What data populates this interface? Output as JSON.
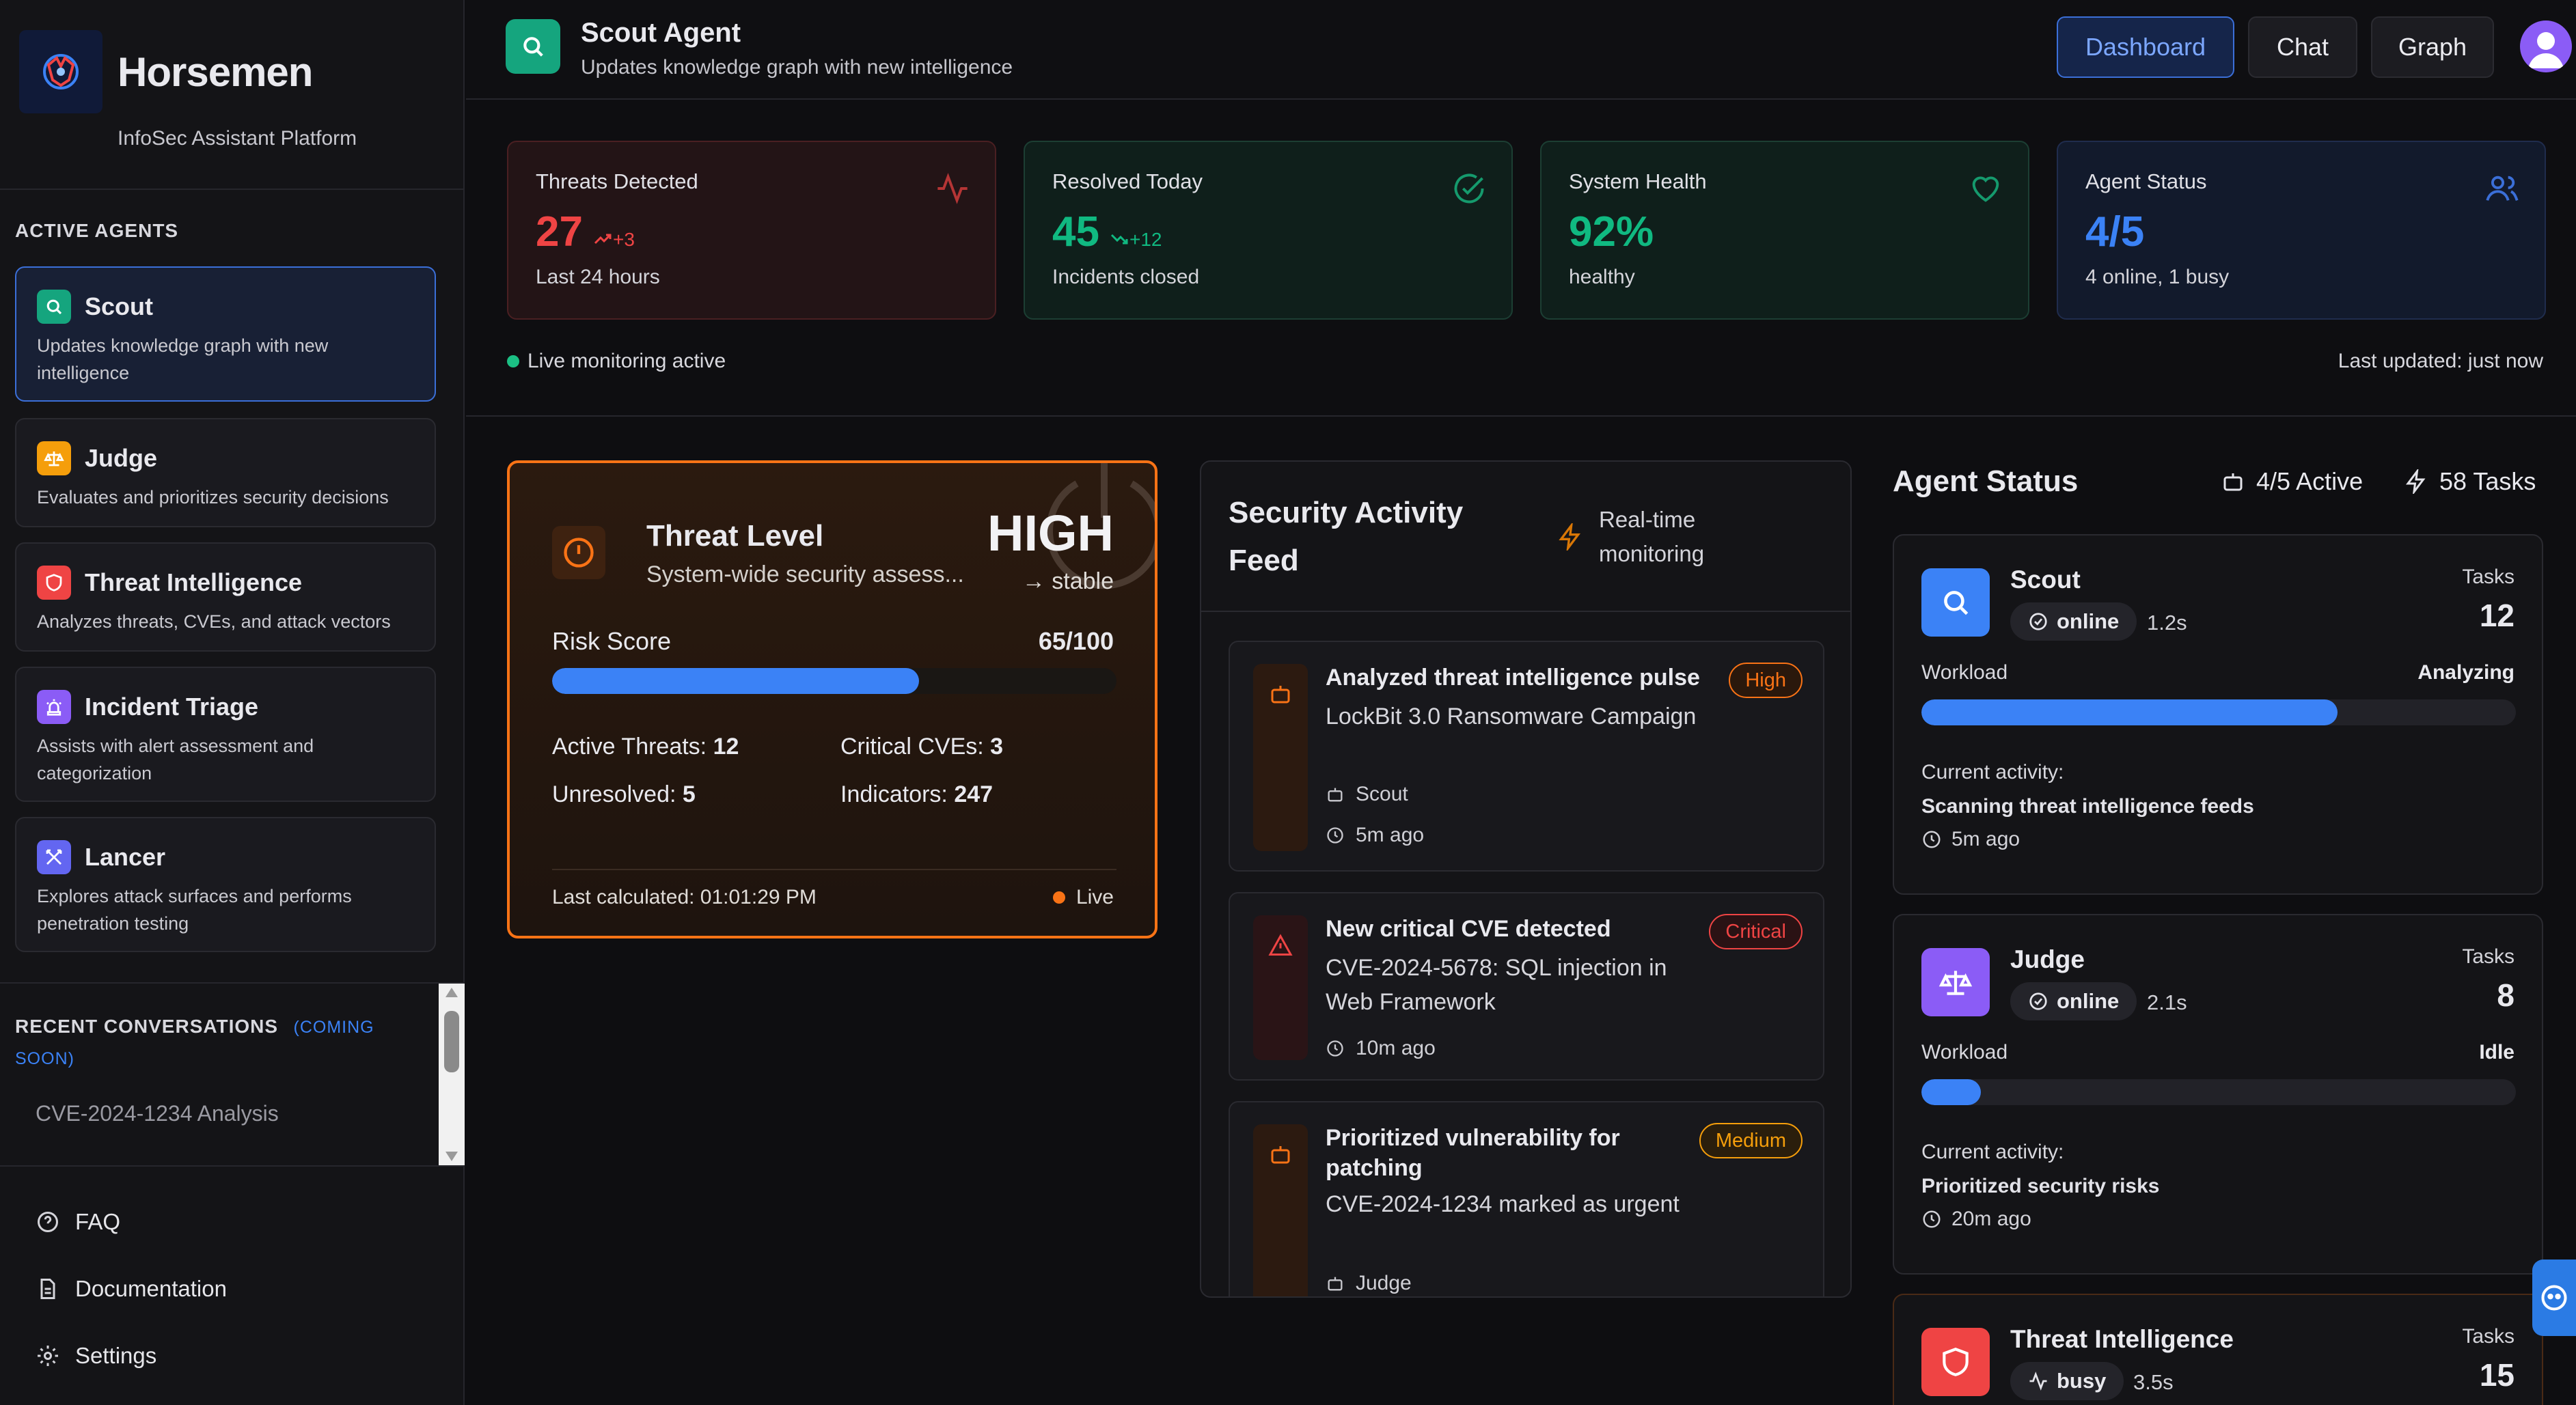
{
  "sidebar": {
    "brand": "Horsemen",
    "platform": "InfoSec Assistant Platform",
    "active_agents_label": "ACTIVE AGENTS",
    "agents": [
      {
        "name": "Scout",
        "desc": "Updates knowledge graph with new intelligence",
        "color": "#15a57e",
        "icon": "search-icon"
      },
      {
        "name": "Judge",
        "desc": "Evaluates and prioritizes security decisions",
        "color": "#f59e0b",
        "icon": "scale-icon"
      },
      {
        "name": "Threat Intelligence",
        "desc": "Analyzes threats, CVEs, and attack vectors",
        "color": "#ef4444",
        "icon": "shield-icon"
      },
      {
        "name": "Incident Triage",
        "desc": "Assists with alert assessment and categorization",
        "color": "#8b5cf6",
        "icon": "siren-icon"
      },
      {
        "name": "Lancer",
        "desc": "Explores attack surfaces and performs penetration testing",
        "color": "#6366f1",
        "icon": "swords-icon"
      }
    ],
    "recent_label": "RECENT CONVERSATIONS",
    "recent_tag": "(COMING SOON)",
    "recent_items": [
      "CVE-2024-1234 Analysis"
    ],
    "links": [
      {
        "label": "FAQ",
        "icon": "help-circle-icon"
      },
      {
        "label": "Documentation",
        "icon": "document-icon"
      },
      {
        "label": "Settings",
        "icon": "gear-icon"
      }
    ]
  },
  "header": {
    "title": "Scout Agent",
    "subtitle": "Updates knowledge graph with new intelligence",
    "nav": [
      "Dashboard",
      "Chat",
      "Graph"
    ],
    "active_nav": "Dashboard"
  },
  "stats": [
    {
      "label": "Threats Detected",
      "value": "27",
      "delta": "+3",
      "sub": "Last 24 hours",
      "color": "#ef4444",
      "icon": "activity-icon"
    },
    {
      "label": "Resolved Today",
      "value": "45",
      "delta": "+12",
      "sub": "Incidents closed",
      "color": "#10b981",
      "icon": "check-circle-icon"
    },
    {
      "label": "System Health",
      "value": "92%",
      "delta": "",
      "sub": "healthy",
      "color": "#10b981",
      "icon": "heart-icon"
    },
    {
      "label": "Agent Status",
      "value": "4/5",
      "delta": "",
      "sub": "4 online, 1 busy",
      "color": "#3b82f6",
      "icon": "users-icon"
    }
  ],
  "live_monitoring": "Live monitoring active",
  "last_updated": "Last updated: just now",
  "threat": {
    "title": "Threat Level",
    "subtitle": "System-wide security assess...",
    "level": "HIGH",
    "trend": "→ stable",
    "risk_label": "Risk Score",
    "risk_value": "65/100",
    "risk_fraction": 0.65,
    "metrics": [
      {
        "label": "Active Threats:",
        "value": "12"
      },
      {
        "label": "Critical CVEs:",
        "value": "3"
      },
      {
        "label": "Unresolved:",
        "value": "5"
      },
      {
        "label": "Indicators:",
        "value": "247"
      }
    ],
    "last_calc": "Last calculated: 01:01:29 PM",
    "live": "Live"
  },
  "feed": {
    "title": "Security Activity Feed",
    "realtime": "Real-time monitoring",
    "items": [
      {
        "title": "Analyzed threat intelligence pulse",
        "desc": "LockBit 3.0 Ransomware Campaign",
        "agent": "Scout",
        "time": "5m ago",
        "badge": "High",
        "badge_color": "#f97316"
      },
      {
        "title": "New critical CVE detected",
        "desc": "CVE-2024-5678: SQL injection in Web Framework",
        "agent": "",
        "time": "10m ago",
        "badge": "Critical",
        "badge_color": "#ef4444"
      },
      {
        "title": "Prioritized vulnerability for patching",
        "desc": "CVE-2024-1234 marked as urgent",
        "agent": "Judge",
        "time": "",
        "badge": "Medium",
        "badge_color": "#f59e0b"
      }
    ]
  },
  "agent_status": {
    "title": "Agent Status",
    "active": "4/5 Active",
    "tasks": "58 Tasks",
    "tasks_label": "Tasks",
    "workload_label": "Workload",
    "activity_label": "Current activity:",
    "agents": [
      {
        "name": "Scout",
        "status": "online",
        "latency": "1.2s",
        "tasks": "12",
        "workload_state": "Analyzing",
        "workload": 0.7,
        "activity": "Scanning threat intelligence feeds",
        "ago": "5m ago",
        "color": "#3b82f6"
      },
      {
        "name": "Judge",
        "status": "online",
        "latency": "2.1s",
        "tasks": "8",
        "workload_state": "Idle",
        "workload": 0.1,
        "activity": "Prioritized security risks",
        "ago": "20m ago",
        "color": "#8b5cf6"
      },
      {
        "name": "Threat Intelligence",
        "status": "busy",
        "latency": "3.5s",
        "tasks": "15",
        "color": "#ef4444"
      }
    ]
  }
}
